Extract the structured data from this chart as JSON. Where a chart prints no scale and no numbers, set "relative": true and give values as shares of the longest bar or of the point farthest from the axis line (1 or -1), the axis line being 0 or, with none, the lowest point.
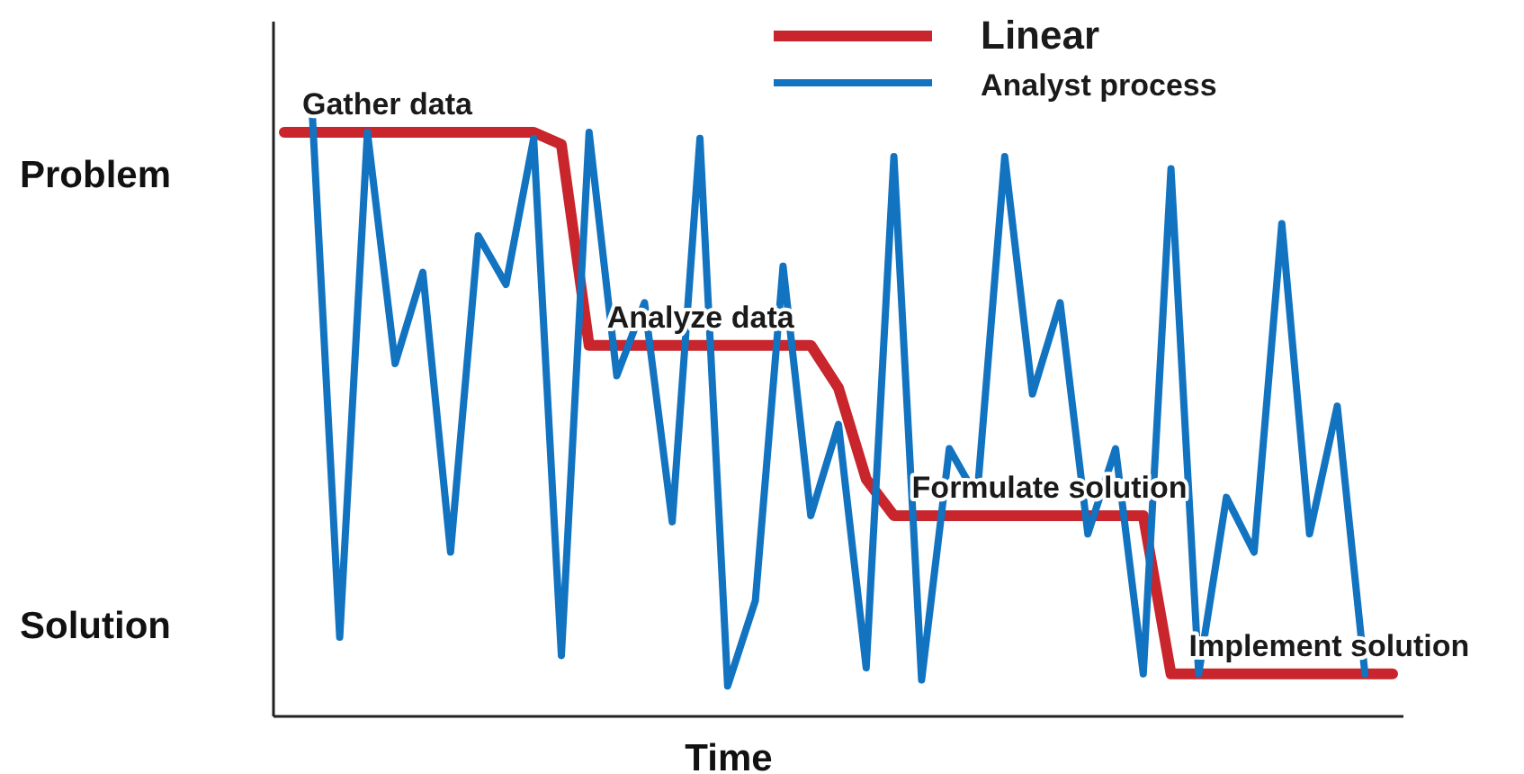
{
  "chart_data": {
    "type": "line",
    "xlabel": "Time",
    "relative": true,
    "legend": "top right",
    "marker": "none",
    "line_style": "solid",
    "categories": [
      null,
      null,
      null,
      null,
      null,
      null,
      null,
      null,
      null,
      null,
      null,
      null,
      null,
      null,
      null,
      null,
      null,
      null,
      null,
      null,
      null,
      null,
      null,
      null,
      null,
      null,
      null,
      null,
      null,
      null,
      null,
      null,
      null,
      null,
      null,
      null,
      null,
      null,
      null,
      null,
      null
    ],
    "series": [
      {
        "name": "Linear",
        "color": "#c8252c",
        "values": [
          0.96,
          0.96,
          0.96,
          0.96,
          0.96,
          0.96,
          0.96,
          0.96,
          0.96,
          0.96,
          0.94,
          0.61,
          0.61,
          0.61,
          0.61,
          0.61,
          0.61,
          0.61,
          0.61,
          0.61,
          0.54,
          0.39,
          0.33,
          0.33,
          0.33,
          0.33,
          0.33,
          0.33,
          0.33,
          0.33,
          0.33,
          0.33,
          0.07,
          0.07,
          0.07,
          0.07,
          0.07,
          0.07,
          0.07,
          0.07,
          0.07
        ]
      },
      {
        "name": "Analyst process",
        "color": "#1273c0",
        "values": [
          null,
          1.0,
          0.13,
          0.96,
          0.58,
          0.73,
          0.27,
          0.79,
          0.71,
          0.95,
          0.1,
          0.96,
          0.56,
          0.68,
          0.32,
          0.95,
          0.05,
          0.19,
          0.74,
          0.33,
          0.48,
          0.08,
          0.92,
          0.06,
          0.44,
          0.36,
          0.92,
          0.53,
          0.68,
          0.3,
          0.44,
          0.07,
          0.9,
          0.07,
          0.36,
          0.27,
          0.81,
          0.3,
          0.51,
          0.07,
          null
        ]
      }
    ],
    "annotations": [
      {
        "text": "Gather data",
        "y": 0.96
      },
      {
        "text": "Analyze data",
        "y": 0.61
      },
      {
        "text": "Formulate solution",
        "y": 0.33
      },
      {
        "text": "Implement solution",
        "y": 0.07
      },
      "Problem",
      "Solution"
    ]
  }
}
